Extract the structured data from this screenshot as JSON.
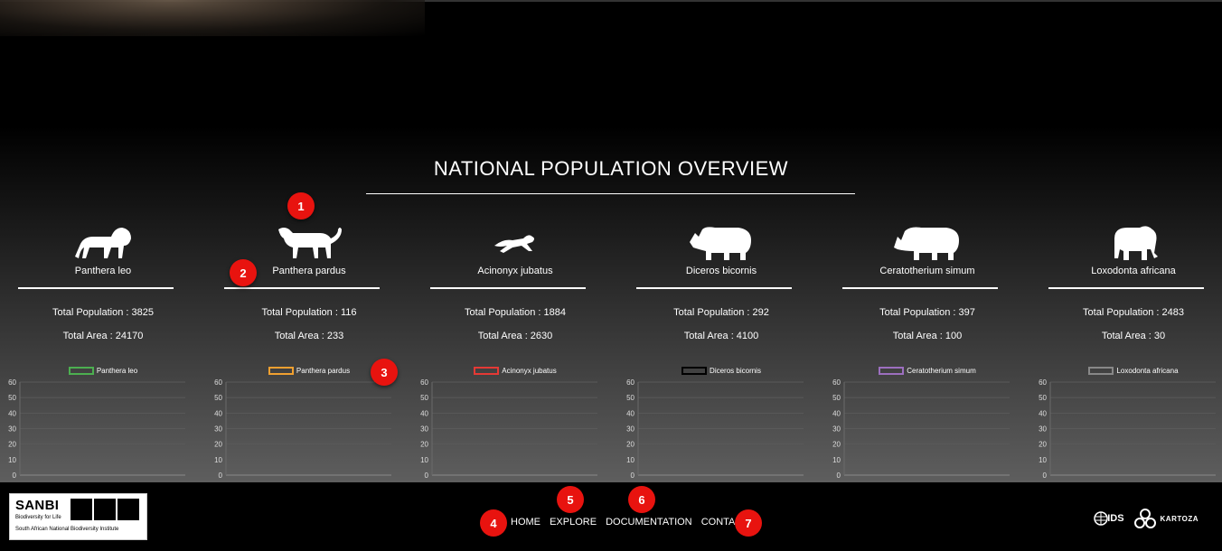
{
  "section_title": "NATIONAL POPULATION OVERVIEW",
  "species": [
    {
      "name": "Panthera leo",
      "population_label": "Total Population : 3825",
      "area_label": "Total Area : 24170",
      "legend": "Panthera leo",
      "color": "#4caf50",
      "icon": "lion-icon"
    },
    {
      "name": "Panthera pardus",
      "population_label": "Total Population : 116",
      "area_label": "Total Area : 233",
      "legend": "Panthera pardus",
      "color": "#f0a030",
      "icon": "leopard-icon"
    },
    {
      "name": "Acinonyx jubatus",
      "population_label": "Total Population : 1884",
      "area_label": "Total Area : 2630",
      "legend": "Acinonyx jubatus",
      "color": "#e53935",
      "icon": "cheetah-icon"
    },
    {
      "name": "Diceros bicornis",
      "population_label": "Total Population : 292",
      "area_label": "Total Area : 4100",
      "legend": "Diceros bicornis",
      "color": "#000000",
      "icon": "black-rhino-icon"
    },
    {
      "name": "Ceratotherium simum",
      "population_label": "Total Population : 397",
      "area_label": "Total Area : 100",
      "legend": "Ceratotherium simum",
      "color": "#9c6fbf",
      "icon": "white-rhino-icon"
    },
    {
      "name": "Loxodonta africana",
      "population_label": "Total Population : 2483",
      "area_label": "Total Area : 30",
      "legend": "Loxodonta africana",
      "color": "#888888",
      "icon": "elephant-icon"
    }
  ],
  "chart_data": [
    {
      "type": "line",
      "series": [
        {
          "name": "Panthera leo",
          "values": []
        }
      ],
      "yticks": [
        "60",
        "50",
        "40",
        "30",
        "20",
        "10",
        "0"
      ],
      "ylim": [
        0,
        60
      ]
    },
    {
      "type": "line",
      "series": [
        {
          "name": "Panthera pardus",
          "values": []
        }
      ],
      "yticks": [
        "60",
        "50",
        "40",
        "30",
        "20",
        "10",
        "0"
      ],
      "ylim": [
        0,
        60
      ]
    },
    {
      "type": "line",
      "series": [
        {
          "name": "Acinonyx jubatus",
          "values": []
        }
      ],
      "yticks": [
        "60",
        "50",
        "40",
        "30",
        "20",
        "10",
        "0"
      ],
      "ylim": [
        0,
        60
      ]
    },
    {
      "type": "line",
      "series": [
        {
          "name": "Diceros bicornis",
          "values": []
        }
      ],
      "yticks": [
        "60",
        "50",
        "40",
        "30",
        "20",
        "10",
        "0"
      ],
      "ylim": [
        0,
        60
      ]
    },
    {
      "type": "line",
      "series": [
        {
          "name": "Ceratotherium simum",
          "values": []
        }
      ],
      "yticks": [
        "60",
        "50",
        "40",
        "30",
        "20",
        "10",
        "0"
      ],
      "ylim": [
        0,
        60
      ]
    },
    {
      "type": "line",
      "series": [
        {
          "name": "Loxodonta africana",
          "values": []
        }
      ],
      "yticks": [
        "60",
        "50",
        "40",
        "30",
        "20",
        "10",
        "0"
      ],
      "ylim": [
        0,
        60
      ]
    }
  ],
  "badges": [
    "1",
    "2",
    "3",
    "4",
    "5",
    "6",
    "7"
  ],
  "footer": {
    "sanbi": {
      "word": "SANBI",
      "tagline": "Biodiversity for Life",
      "full_name": "South African National Biodiversity Institute"
    },
    "nav": {
      "home": "HOME",
      "explore": "EXPLORE",
      "documentation": "DOCUMENTATION",
      "contact": "CONTACT"
    },
    "partners": {
      "ids": "IDS",
      "kartoza": "KARTOZA"
    }
  }
}
